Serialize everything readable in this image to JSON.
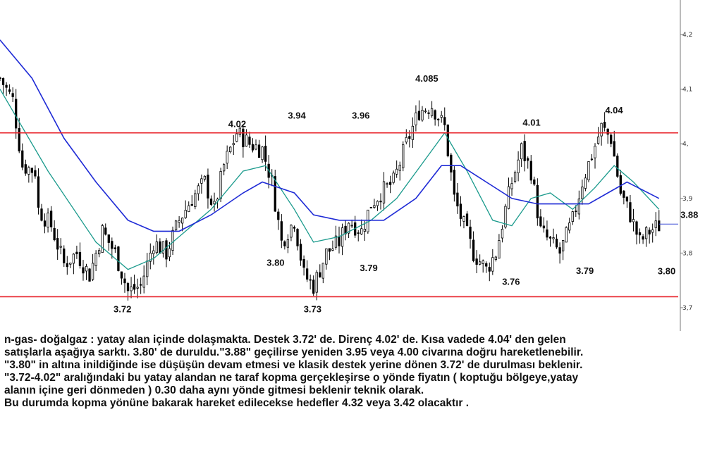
{
  "chart_data": {
    "type": "candlestick",
    "title": "",
    "xlabel": "",
    "ylabel": "",
    "ylim": [
      3.65,
      4.25
    ],
    "y_ticks": [
      {
        "value": 4.2,
        "label": "4,2"
      },
      {
        "value": 4.1,
        "label": "4,1"
      },
      {
        "value": 4.0,
        "label": "4,"
      },
      {
        "value": 3.9,
        "label": "3,9"
      },
      {
        "value": 3.8,
        "label": "3,8"
      },
      {
        "value": 3.7,
        "label": "3,7"
      }
    ],
    "grid": false,
    "colors": {
      "candles": "#000000",
      "resistance_line": "#e8232a",
      "support_line": "#e8232a",
      "ma_fast": "#1a9a8c",
      "ma_slow": "#1f2bd6",
      "last_price_line": "#3b4bd6",
      "axis": "#777777"
    },
    "levels": {
      "resistance": 4.02,
      "support": 3.72,
      "last_price": 3.853
    },
    "close_path": [
      [
        0,
        4.12
      ],
      [
        4,
        4.08
      ],
      [
        7,
        3.96
      ],
      [
        11,
        3.95
      ],
      [
        12,
        3.88
      ],
      [
        16,
        3.85
      ],
      [
        20,
        3.78
      ],
      [
        24,
        3.8
      ],
      [
        28,
        3.76
      ],
      [
        32,
        3.84
      ],
      [
        36,
        3.8
      ],
      [
        40,
        3.73
      ],
      [
        44,
        3.74
      ],
      [
        48,
        3.82
      ],
      [
        52,
        3.8
      ],
      [
        56,
        3.86
      ],
      [
        60,
        3.9
      ],
      [
        64,
        3.93
      ],
      [
        67,
        3.88
      ],
      [
        70,
        3.96
      ],
      [
        74,
        4.02
      ],
      [
        78,
        4.0
      ],
      [
        82,
        3.99
      ],
      [
        85,
        3.93
      ],
      [
        88,
        3.82
      ],
      [
        92,
        3.86
      ],
      [
        95,
        3.76
      ],
      [
        98,
        3.74
      ],
      [
        102,
        3.8
      ],
      [
        106,
        3.82
      ],
      [
        109,
        3.86
      ],
      [
        113,
        3.84
      ],
      [
        116,
        3.89
      ],
      [
        119,
        3.91
      ],
      [
        123,
        3.93
      ],
      [
        127,
        4.0
      ],
      [
        131,
        4.06
      ],
      [
        135,
        4.07
      ],
      [
        139,
        4.03
      ],
      [
        142,
        3.9
      ],
      [
        145,
        3.85
      ],
      [
        148,
        3.8
      ],
      [
        152,
        3.77
      ],
      [
        155,
        3.8
      ],
      [
        158,
        3.88
      ],
      [
        160,
        3.93
      ],
      [
        163,
        3.99
      ],
      [
        166,
        3.95
      ],
      [
        169,
        3.84
      ],
      [
        172,
        3.82
      ],
      [
        175,
        3.8
      ],
      [
        179,
        3.86
      ],
      [
        182,
        3.93
      ],
      [
        185,
        3.98
      ],
      [
        188,
        4.03
      ],
      [
        191,
        4.01
      ],
      [
        194,
        3.91
      ],
      [
        197,
        3.87
      ],
      [
        200,
        3.82
      ],
      [
        203,
        3.84
      ],
      [
        206,
        3.85
      ]
    ],
    "series": [
      {
        "name": "",
        "key": "ma_fast",
        "values": [
          [
            0,
            4.1
          ],
          [
            15,
            3.95
          ],
          [
            30,
            3.82
          ],
          [
            40,
            3.77
          ],
          [
            48,
            3.79
          ],
          [
            56,
            3.83
          ],
          [
            66,
            3.88
          ],
          [
            76,
            3.95
          ],
          [
            83,
            3.96
          ],
          [
            92,
            3.88
          ],
          [
            98,
            3.82
          ],
          [
            106,
            3.83
          ],
          [
            116,
            3.86
          ],
          [
            124,
            3.9
          ],
          [
            134,
            3.98
          ],
          [
            139,
            4.02
          ],
          [
            146,
            3.95
          ],
          [
            154,
            3.86
          ],
          [
            160,
            3.85
          ],
          [
            166,
            3.9
          ],
          [
            172,
            3.91
          ],
          [
            179,
            3.88
          ],
          [
            186,
            3.92
          ],
          [
            192,
            3.96
          ],
          [
            198,
            3.93
          ],
          [
            206,
            3.88
          ]
        ]
      },
      {
        "name": "",
        "key": "ma_slow",
        "values": [
          [
            0,
            4.19
          ],
          [
            10,
            4.12
          ],
          [
            20,
            4.01
          ],
          [
            30,
            3.93
          ],
          [
            40,
            3.86
          ],
          [
            48,
            3.84
          ],
          [
            56,
            3.84
          ],
          [
            66,
            3.87
          ],
          [
            76,
            3.91
          ],
          [
            82,
            3.93
          ],
          [
            92,
            3.91
          ],
          [
            98,
            3.87
          ],
          [
            106,
            3.86
          ],
          [
            120,
            3.86
          ],
          [
            130,
            3.9
          ],
          [
            138,
            3.96
          ],
          [
            144,
            3.96
          ],
          [
            152,
            3.93
          ],
          [
            160,
            3.9
          ],
          [
            168,
            3.89
          ],
          [
            176,
            3.89
          ],
          [
            184,
            3.89
          ],
          [
            190,
            3.91
          ],
          [
            196,
            3.93
          ],
          [
            206,
            3.9
          ]
        ]
      }
    ],
    "annotations": [
      {
        "text": "4.02",
        "x": 74,
        "y": 4.02
      },
      {
        "text": "3.94",
        "x": 90,
        "y": 4.02
      },
      {
        "text": "3.96",
        "x": 110,
        "y": 4.02
      },
      {
        "text": "4.085",
        "x": 136,
        "y": 4.085
      },
      {
        "text": "4.01",
        "x": 170,
        "y": 4.02
      },
      {
        "text": "4.04",
        "x": 194,
        "y": 4.04
      },
      {
        "text": "3.88",
        "x": 214,
        "y": 3.88
      },
      {
        "text": "3.80",
        "x": 86,
        "y": 3.8
      },
      {
        "text": "3.79",
        "x": 116,
        "y": 3.79
      },
      {
        "text": "3.76",
        "x": 164,
        "y": 3.76
      },
      {
        "text": "3.79",
        "x": 184,
        "y": 3.79
      },
      {
        "text": "3.80",
        "x": 210,
        "y": 3.8
      },
      {
        "text": "3.72",
        "x": 41,
        "y": 3.72
      },
      {
        "text": "3.73",
        "x": 98,
        "y": 3.73
      }
    ]
  },
  "commentary": [
    "n-gas- doğalgaz : yatay alan içinde dolaşmakta. Destek 3.72' de. Direnç 4.02' de. Kısa vadede 4.04' den gelen",
    "satışlarla aşağıya sarktı. 3.80' de duruldu.\"3.88\" geçilirse yeniden 3.95 veya 4.00 civarına doğru hareketlenebilir.",
    "\"3.80\" in altına inildiğinde ise düşüşün devam etmesi ve klasik destek yerine dönen 3.72' de durulması beklenir.",
    "\"3.72-4.02\" aralığındaki bu yatay alandan ne taraf kopma gerçekleşirse o yönde fiyatın ( koptuğu bölgeye,yatay",
    "alanın içine geri dönmeden ) 0.30 daha aynı yönde gitmesi beklenir teknik olarak.",
    "Bu durumda kopma yönüne bakarak hareket edilecekse hedefler 4.32 veya 3.42 olacaktır ."
  ]
}
